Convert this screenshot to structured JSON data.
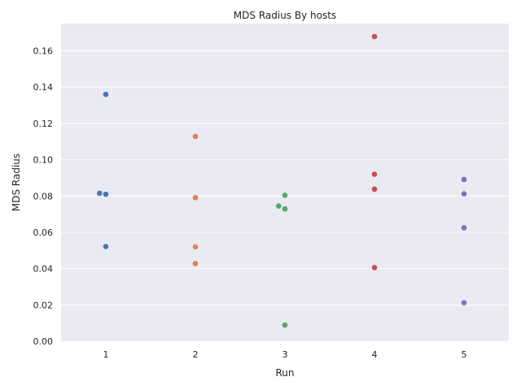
{
  "chart_data": {
    "type": "scatter",
    "title": "MDS Radius By hosts",
    "xlabel": "Run",
    "ylabel": "MDS Radius",
    "categories": [
      "1",
      "2",
      "3",
      "4",
      "5"
    ],
    "ylim": [
      0,
      0.175
    ],
    "yticks": [
      "0.00",
      "0.02",
      "0.04",
      "0.06",
      "0.08",
      "0.10",
      "0.12",
      "0.14",
      "0.16"
    ],
    "grid": true,
    "background_color": "#eaeaf2",
    "series": [
      {
        "category": "1",
        "color": "#4c72b0",
        "points": [
          {
            "x": 1,
            "y": 0.136,
            "jitter": 0.0
          },
          {
            "x": 1,
            "y": 0.0815,
            "jitter": -0.07
          },
          {
            "x": 1,
            "y": 0.081,
            "jitter": 0.0
          },
          {
            "x": 1,
            "y": 0.0522,
            "jitter": 0.0
          }
        ]
      },
      {
        "category": "2",
        "color": "#dd8452",
        "points": [
          {
            "x": 2,
            "y": 0.1128,
            "jitter": 0.0
          },
          {
            "x": 2,
            "y": 0.0791,
            "jitter": 0.0
          },
          {
            "x": 2,
            "y": 0.052,
            "jitter": 0.0
          },
          {
            "x": 2,
            "y": 0.0428,
            "jitter": 0.0
          }
        ]
      },
      {
        "category": "3",
        "color": "#55a868",
        "points": [
          {
            "x": 3,
            "y": 0.0804,
            "jitter": 0.0
          },
          {
            "x": 3,
            "y": 0.0745,
            "jitter": -0.07
          },
          {
            "x": 3,
            "y": 0.0729,
            "jitter": 0.0
          },
          {
            "x": 3,
            "y": 0.0089,
            "jitter": 0.0
          }
        ]
      },
      {
        "category": "4",
        "color": "#c44e52",
        "points": [
          {
            "x": 4,
            "y": 0.1678,
            "jitter": 0.0
          },
          {
            "x": 4,
            "y": 0.092,
            "jitter": 0.0
          },
          {
            "x": 4,
            "y": 0.0838,
            "jitter": 0.0
          },
          {
            "x": 4,
            "y": 0.0406,
            "jitter": 0.0
          }
        ]
      },
      {
        "category": "5",
        "color": "#8172b3",
        "points": [
          {
            "x": 5,
            "y": 0.0891,
            "jitter": 0.0
          },
          {
            "x": 5,
            "y": 0.0812,
            "jitter": 0.0
          },
          {
            "x": 5,
            "y": 0.0625,
            "jitter": 0.0
          },
          {
            "x": 5,
            "y": 0.0212,
            "jitter": 0.0
          }
        ]
      }
    ]
  }
}
